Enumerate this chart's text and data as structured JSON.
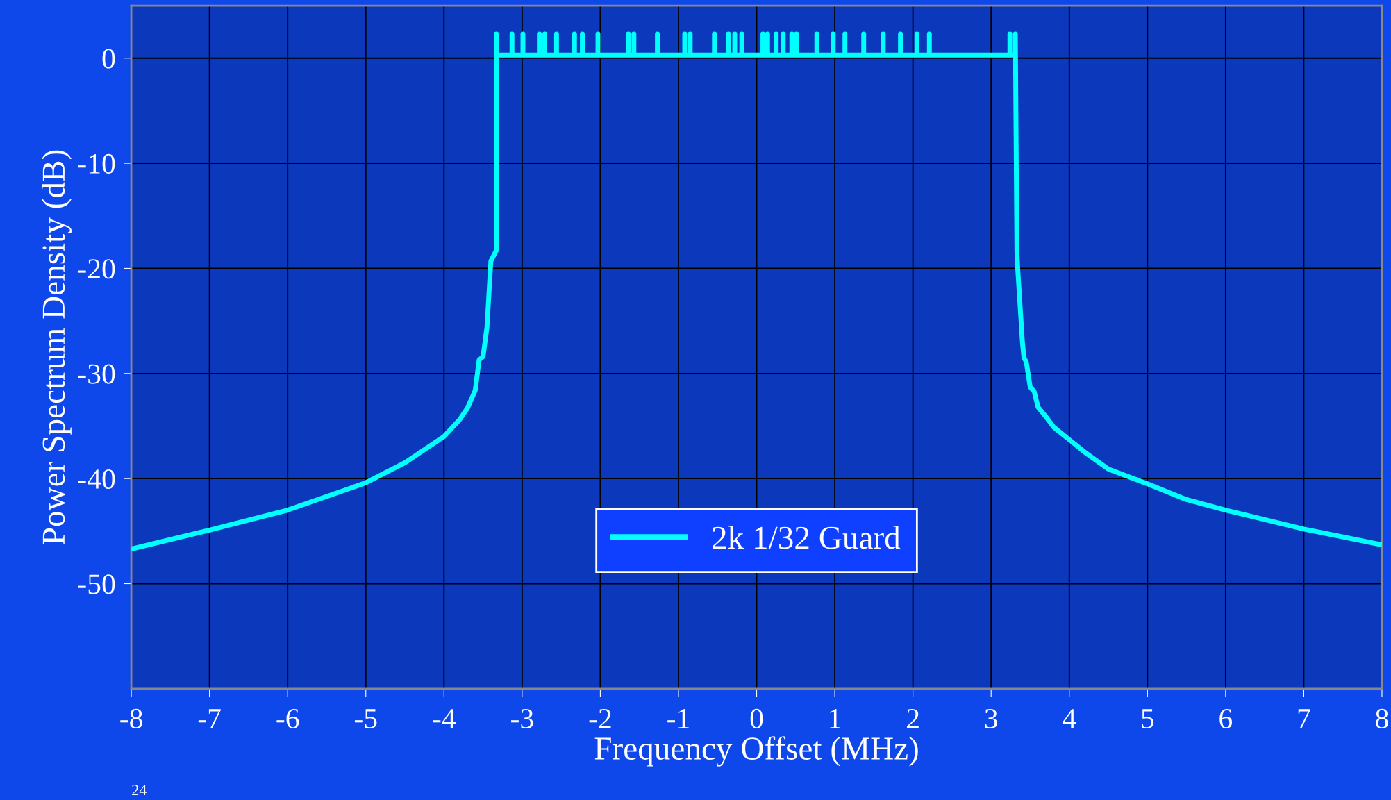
{
  "chart_data": {
    "type": "line",
    "xlabel": "Frequency Offset (MHz)",
    "ylabel": "Power Spectrum Density (dB)",
    "xlim": [
      -8,
      8
    ],
    "ylim": [
      -60,
      5
    ],
    "xticks": [
      -8,
      -7,
      -6,
      -5,
      -4,
      -3,
      -2,
      -1,
      0,
      1,
      2,
      3,
      4,
      5,
      6,
      7,
      8
    ],
    "yticks": [
      -50,
      -40,
      -30,
      -20,
      -10,
      0
    ],
    "grid": true,
    "legend": "bottom",
    "marker": "none",
    "line_style": "solid",
    "annotations": [
      "24"
    ],
    "series": [
      {
        "name": "2k 1/32 Guard",
        "color": "#00ffff",
        "x": [
          -8,
          -7,
          -6,
          -5,
          -4.5,
          -4,
          -3.8,
          -3.7,
          -3.6,
          -3.55,
          -3.5,
          -3.45,
          -3.4,
          -3.33,
          -3.33,
          -3.33,
          -3.13,
          -3.13,
          -3.13,
          -2.99,
          -2.99,
          -2.99,
          -2.78,
          -2.78,
          -2.78,
          -2.71,
          -2.71,
          -2.71,
          -2.56,
          -2.56,
          -2.56,
          -2.33,
          -2.33,
          -2.33,
          -2.23,
          -2.23,
          -2.23,
          -2.03,
          -2.03,
          -2.03,
          -1.64,
          -1.64,
          -1.64,
          -1.57,
          -1.57,
          -1.57,
          -1.27,
          -1.27,
          -1.27,
          -0.92,
          -0.92,
          -0.92,
          -0.85,
          -0.85,
          -0.85,
          -0.54,
          -0.54,
          -0.54,
          -0.36,
          -0.36,
          -0.36,
          -0.28,
          -0.28,
          -0.28,
          -0.19,
          -0.19,
          -0.19,
          0.08,
          0.08,
          0.08,
          0.14,
          0.14,
          0.14,
          0.25,
          0.25,
          0.25,
          0.34,
          0.34,
          0.34,
          0.45,
          0.45,
          0.45,
          0.51,
          0.51,
          0.51,
          0.77,
          0.77,
          0.77,
          0.98,
          0.98,
          0.98,
          1.13,
          1.13,
          1.13,
          1.37,
          1.37,
          1.37,
          1.62,
          1.62,
          1.62,
          1.84,
          1.84,
          1.84,
          2.05,
          2.05,
          2.05,
          2.21,
          2.21,
          2.21,
          3.24,
          3.24,
          3.24,
          3.31,
          3.31,
          3.33,
          3.34,
          3.4,
          3.42,
          3.45,
          3.5,
          3.55,
          3.6,
          3.7,
          3.8,
          4,
          4.2,
          4.5,
          5,
          5.5,
          6,
          7,
          8
        ],
        "values": [
          -46.7,
          -44.9,
          -43.0,
          -40.4,
          -38.5,
          -36.0,
          -34.4,
          -33.3,
          -31.6,
          -28.7,
          -28.4,
          -25.6,
          -19.3,
          -18.3,
          2.3,
          0.3,
          0.3,
          2.3,
          0.3,
          0.3,
          2.3,
          0.3,
          0.3,
          2.3,
          0.3,
          0.3,
          2.3,
          0.3,
          0.3,
          2.3,
          0.3,
          0.3,
          2.3,
          0.3,
          0.3,
          2.3,
          0.3,
          0.3,
          2.3,
          0.3,
          0.3,
          2.3,
          0.3,
          0.3,
          2.3,
          0.3,
          0.3,
          2.3,
          0.3,
          0.3,
          2.3,
          0.3,
          0.3,
          2.3,
          0.3,
          0.3,
          2.3,
          0.3,
          0.3,
          2.3,
          0.3,
          0.3,
          2.3,
          0.3,
          0.3,
          2.3,
          0.3,
          0.3,
          2.3,
          0.3,
          0.3,
          2.3,
          0.3,
          0.3,
          2.3,
          0.3,
          0.3,
          2.3,
          0.3,
          0.3,
          2.3,
          0.3,
          0.3,
          2.3,
          0.3,
          0.3,
          2.3,
          0.3,
          0.3,
          2.3,
          0.3,
          0.3,
          2.3,
          0.3,
          0.3,
          2.3,
          0.3,
          0.3,
          2.3,
          0.3,
          0.3,
          2.3,
          0.3,
          0.3,
          2.3,
          0.3,
          0.3,
          2.3,
          0.3,
          0.3,
          2.3,
          0.3,
          0.3,
          2.3,
          -18.4,
          -20.0,
          -27.0,
          -28.5,
          -28.9,
          -31.3,
          -31.7,
          -33.2,
          -34.1,
          -35.1,
          -36.3,
          -37.5,
          -39.1,
          -40.5,
          -42.0,
          -43.0,
          -44.8,
          -46.3
        ]
      }
    ]
  }
}
